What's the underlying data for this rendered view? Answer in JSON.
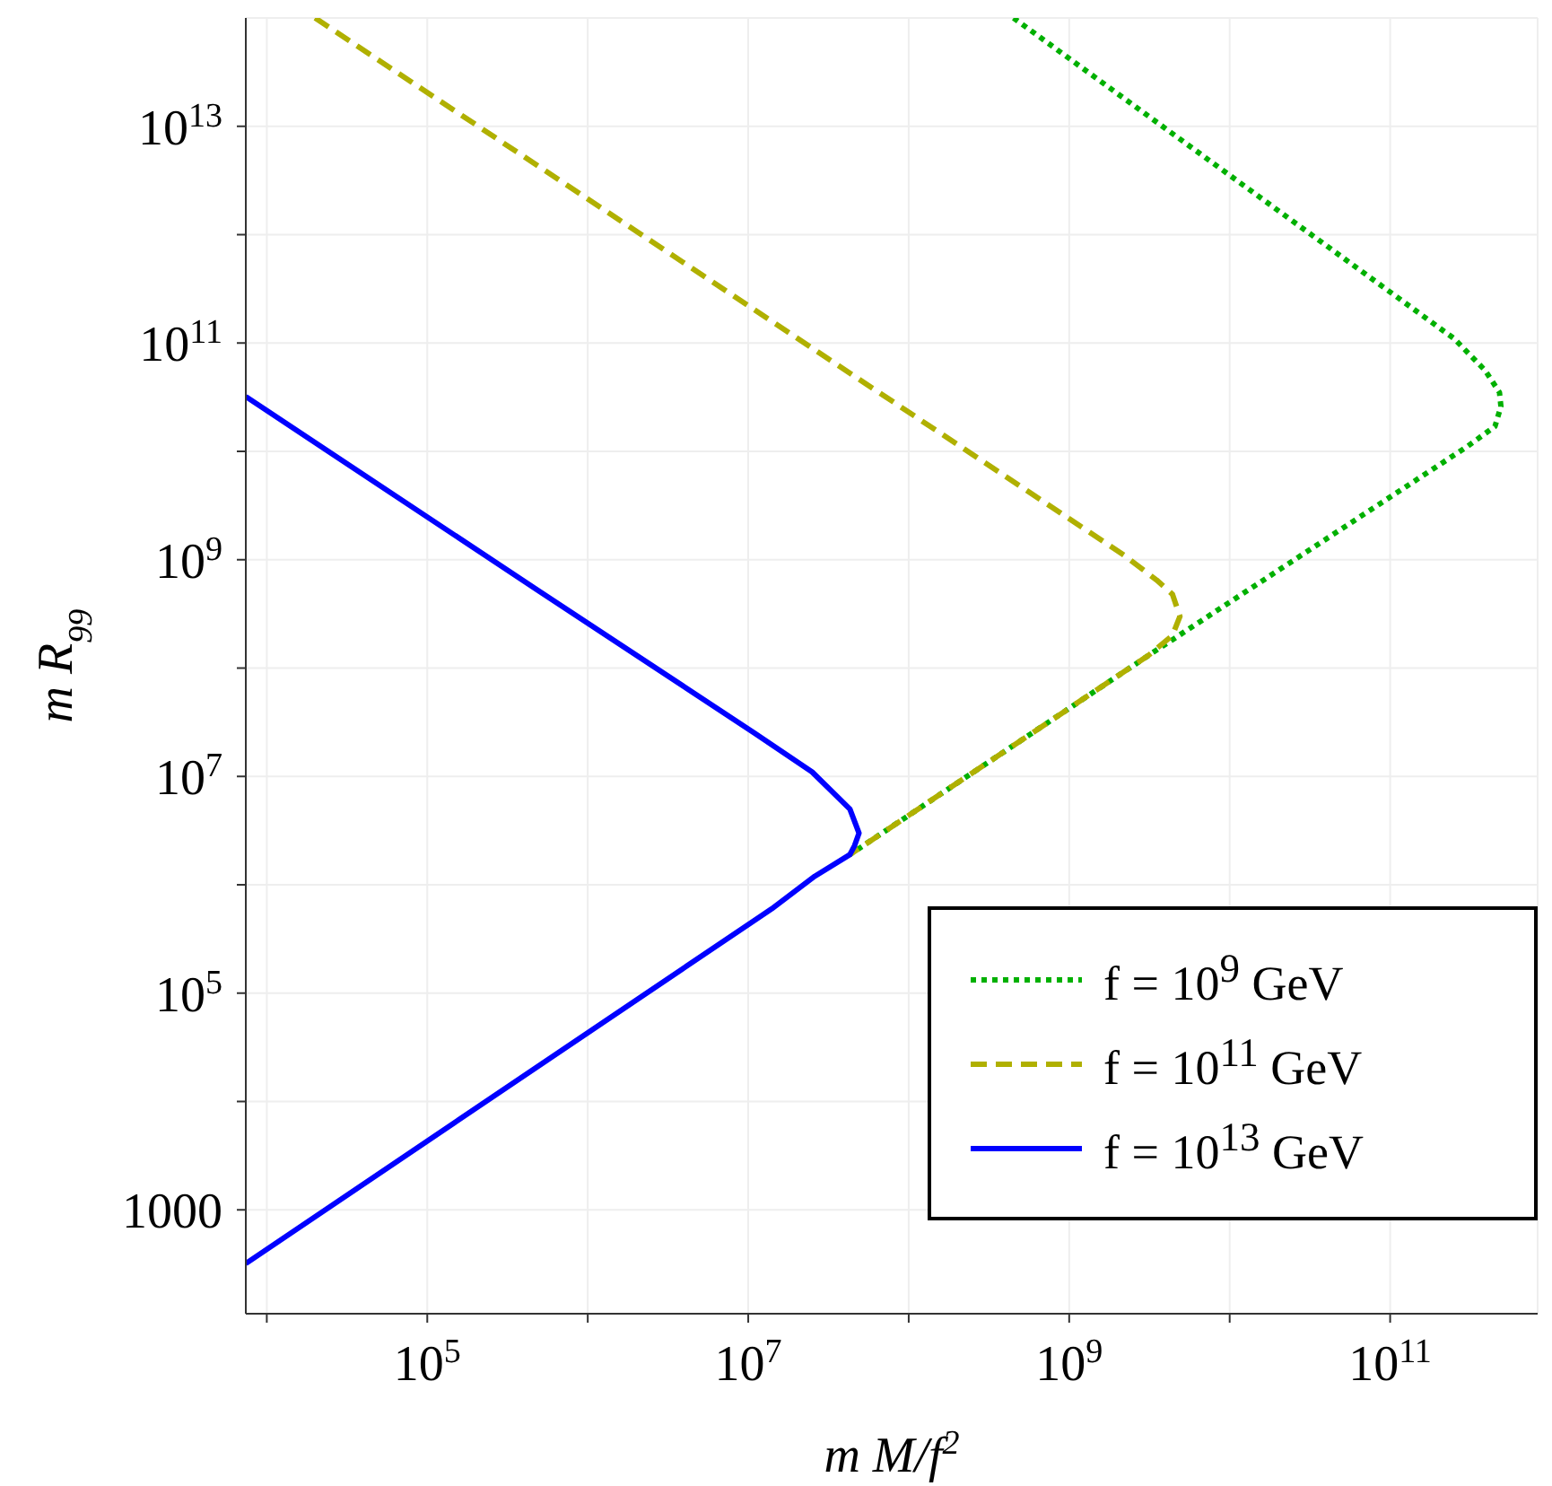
{
  "chart_data": {
    "type": "line",
    "xlabel": "m M/f$^{2}$",
    "ylabel": "m R$_{99}$",
    "log": "xy",
    "grid": true,
    "legend": "bottom right",
    "marker": "none",
    "xlim": [
      7400,
      830000000000.0
    ],
    "ylim": [
      110,
      100000000000000.0
    ],
    "xticks": [
      {
        "value": 10000,
        "label": null
      },
      {
        "value": 100000,
        "label": "10$^{5}$"
      },
      {
        "value": 1000000,
        "label": null
      },
      {
        "value": 10000000,
        "label": "10$^{7}$"
      },
      {
        "value": 100000000,
        "label": null
      },
      {
        "value": 1000000000,
        "label": "10$^{9}$"
      },
      {
        "value": 10000000000,
        "label": null
      },
      {
        "value": 100000000000,
        "label": "10$^{11}$"
      }
    ],
    "yticks": [
      1000,
      {
        "value": 10000,
        "label": null
      },
      {
        "value": 100000,
        "label": "10$^{5}$"
      },
      {
        "value": 1000000,
        "label": null
      },
      {
        "value": 10000000,
        "label": "10$^{7}$"
      },
      {
        "value": 100000000,
        "label": null
      },
      {
        "value": 1000000000,
        "label": "10$^{9}$"
      },
      {
        "value": 10000000000,
        "label": null
      },
      {
        "value": 100000000000,
        "label": "10$^{11}$"
      },
      {
        "value": 1000000000000,
        "label": null
      },
      {
        "value": 10000000000000,
        "label": "10$^{13}$"
      }
    ],
    "series": [
      {
        "name": "f = 10$^{9}$ GeV",
        "color": "#00b000",
        "line_style": "dotted",
        "x": [
          450000000.0,
          250000000000.0,
          390000000000.0,
          480000000000.0,
          490000000000.0,
          450000000000.0,
          300000000000.0,
          3100000000.0,
          43000000.0
        ],
        "values": [
          100000000000000.0,
          110000000000.0,
          56000000000.0,
          35000000000.0,
          26000000000.0,
          17000000000.0,
          11000000000.0,
          130000000.0,
          1900000.0
        ]
      },
      {
        "name": "f = 10$^{11}$ GeV",
        "color": "#b0b000",
        "line_style": "dashed",
        "x": [
          20000.0,
          2200000000.0,
          3500000000.0,
          4400000000.0,
          4900000000.0,
          4400000000.0,
          3100000000.0,
          43000000.0
        ],
        "values": [
          100000000000000.0,
          1100000000.0,
          650000000.0,
          480000000.0,
          300000000.0,
          200000000.0,
          130000000.0,
          1900000.0
        ]
      },
      {
        "name": "f = 10$^{13}$ GeV",
        "color": "#0000ff",
        "line_style": "solid",
        "x": [
          7400,
          490000.0,
          11000000.0,
          25000000.0,
          43000000.0,
          49000000.0,
          46000000.0,
          43000000.0,
          26000000.0,
          14000000.0,
          7400
        ],
        "values": [
          32000000000.0,
          520000000.0,
          25000000.0,
          11000000.0,
          5000000.0,
          3000000.0,
          2300000.0,
          1900000.0,
          1200000.0,
          600000.0,
          320
        ]
      }
    ]
  }
}
